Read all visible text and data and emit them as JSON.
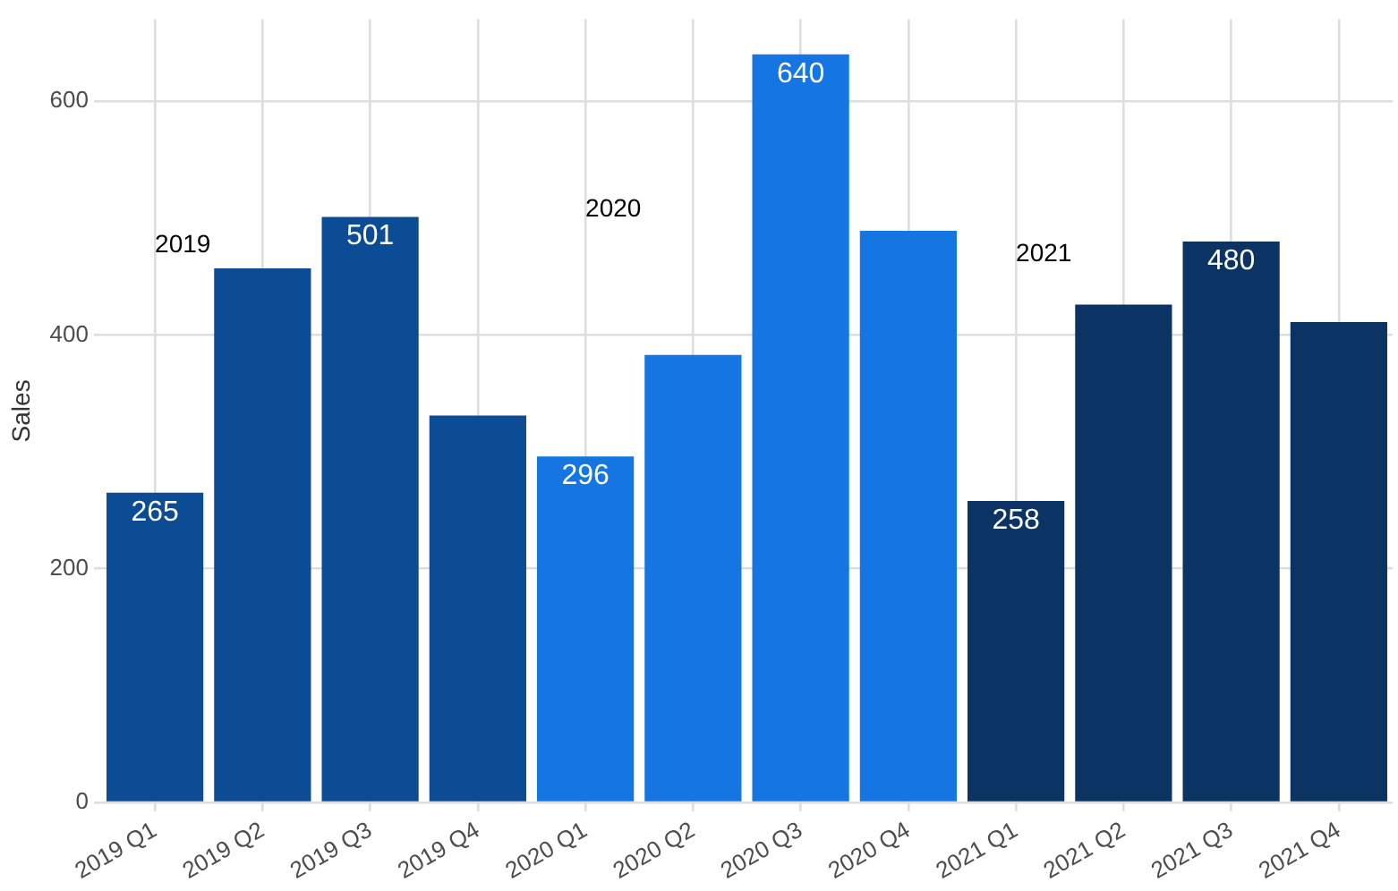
{
  "chart_data": {
    "type": "bar",
    "ylabel": "Sales",
    "categories": [
      "2019 Q1",
      "2019 Q2",
      "2019 Q3",
      "2019 Q4",
      "2020 Q1",
      "2020 Q2",
      "2020 Q3",
      "2020 Q4",
      "2021 Q1",
      "2021 Q2",
      "2021 Q3",
      "2021 Q4"
    ],
    "values": [
      265,
      457,
      501,
      331,
      296,
      383,
      640,
      489,
      258,
      426,
      480,
      411
    ],
    "colors": [
      "#0c4c94",
      "#0c4c94",
      "#0c4c94",
      "#0c4c94",
      "#1475e3",
      "#1475e3",
      "#1475e3",
      "#1475e3",
      "#0b3464",
      "#0b3464",
      "#0b3464",
      "#0b3464"
    ],
    "value_labels": [
      "265",
      null,
      "501",
      null,
      "296",
      null,
      "640",
      null,
      "258",
      null,
      "480",
      null
    ],
    "annotations": [
      "2019",
      "2020",
      "2021"
    ],
    "ylim": [
      0,
      670
    ],
    "yticks": [
      0,
      200,
      400,
      600
    ],
    "grid": true,
    "legend": false
  }
}
